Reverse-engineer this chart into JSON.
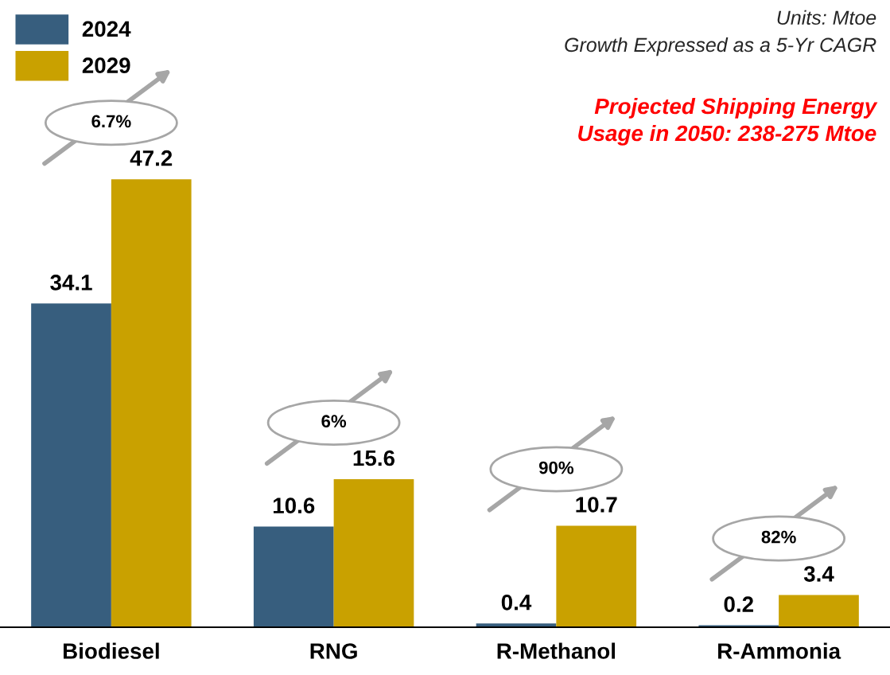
{
  "chart_data": {
    "type": "bar",
    "title": "Projected Shipping Energy\nUsage in 2050: 238-275 Mtoe",
    "subtitle": "Units: Mtoe\nGrowth Expressed as a 5-Yr CAGR",
    "categories": [
      "Biodiesel",
      "RNG",
      "R-Methanol",
      "R-Ammonia"
    ],
    "series": [
      {
        "name": "2024",
        "color": "#375e7e",
        "values": [
          34.1,
          10.6,
          0.4,
          0.2
        ]
      },
      {
        "name": "2029",
        "color": "#c9a100",
        "values": [
          47.2,
          15.6,
          10.7,
          3.4
        ]
      }
    ],
    "data_labels": true,
    "legend": "top left",
    "grid": false,
    "annotations": [
      "6.7%",
      "6%",
      "90%",
      "82%"
    ]
  }
}
